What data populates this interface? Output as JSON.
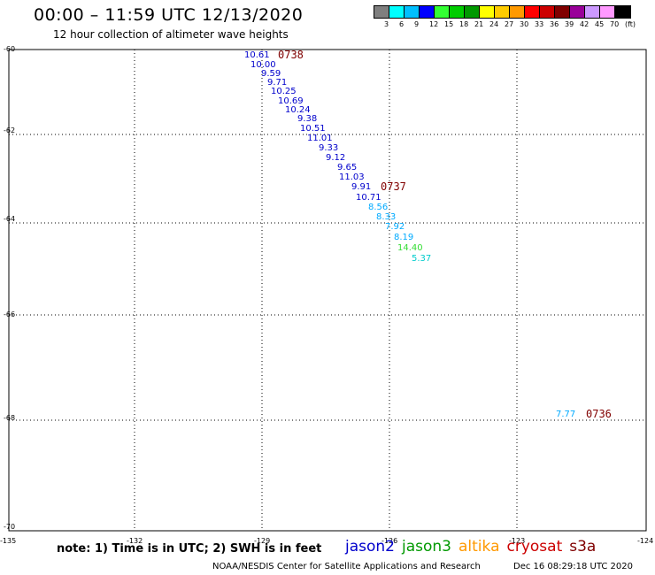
{
  "header": {
    "title": "00:00 – 11:59 UTC 12/13/2020",
    "subtitle": "12 hour collection of altimeter wave heights"
  },
  "legend": {
    "colors": [
      "#7f7f7f",
      "#00ffff",
      "#00bfff",
      "#0000ff",
      "#33ff33",
      "#00cc00",
      "#009900",
      "#ffff00",
      "#ffcc00",
      "#ff9900",
      "#ff0000",
      "#cc0000",
      "#800000",
      "#990099",
      "#cc99ff",
      "#ff99ff",
      "#000000"
    ],
    "labels": [
      "3",
      "6",
      "9",
      "12",
      "15",
      "18",
      "21",
      "24",
      "27",
      "30",
      "33",
      "36",
      "39",
      "42",
      "45",
      "70",
      "(ft)"
    ]
  },
  "map": {
    "lat_labels": [
      "-60",
      "-62",
      "-64",
      "-66",
      "-68",
      "-70"
    ],
    "lon_labels": [
      "-135",
      "-132",
      "-129",
      "-126",
      "-123",
      "-124"
    ],
    "time_labels": [
      {
        "text": "0738",
        "lon": -128.6,
        "lat": -60.2,
        "color": "#800000"
      },
      {
        "text": "0737",
        "lon": -125.8,
        "lat": -63.3,
        "color": "#800000"
      },
      {
        "text": "0736",
        "lon": -121.2,
        "lat": -67.8,
        "color": "#800000"
      }
    ],
    "points": [
      {
        "text": "10.61",
        "lon": -129.4,
        "lat": -60.2,
        "color": "#0000cc"
      },
      {
        "text": "10.00",
        "lon": -129.2,
        "lat": -60.4,
        "color": "#0000cc"
      },
      {
        "text": "9.59",
        "lon": -128.9,
        "lat": -60.6,
        "color": "#0000cc"
      },
      {
        "text": "9.71",
        "lon": -128.8,
        "lat": -60.8,
        "color": "#0000cc"
      },
      {
        "text": "10.25",
        "lon": -128.6,
        "lat": -61.0,
        "color": "#0000cc"
      },
      {
        "text": "10.69",
        "lon": -128.4,
        "lat": -61.2,
        "color": "#0000cc"
      },
      {
        "text": "10.24",
        "lon": -128.2,
        "lat": -61.4,
        "color": "#0000cc"
      },
      {
        "text": "9.38",
        "lon": -128.0,
        "lat": -61.6,
        "color": "#0000cc"
      },
      {
        "text": "10.51",
        "lon": -127.8,
        "lat": -61.8,
        "color": "#0000cc"
      },
      {
        "text": "11.01",
        "lon": -127.6,
        "lat": -62.0,
        "color": "#0000cc"
      },
      {
        "text": "9.33",
        "lon": -127.4,
        "lat": -62.2,
        "color": "#0000cc"
      },
      {
        "text": "9.12",
        "lon": -127.2,
        "lat": -62.4,
        "color": "#0000cc"
      },
      {
        "text": "9.65",
        "lon": -127.0,
        "lat": -62.6,
        "color": "#0000cc"
      },
      {
        "text": "11.03",
        "lon": -126.8,
        "lat": -62.8,
        "color": "#0000cc"
      },
      {
        "text": "9.91",
        "lon": -126.6,
        "lat": -63.0,
        "color": "#0000cc"
      },
      {
        "text": "10.71",
        "lon": -126.4,
        "lat": -63.2,
        "color": "#0000cc"
      },
      {
        "text": "8.56",
        "lon": -126.2,
        "lat": -63.4,
        "color": "#00aaff"
      },
      {
        "text": "8.33",
        "lon": -126.1,
        "lat": -63.6,
        "color": "#00aaff"
      },
      {
        "text": "7.92",
        "lon": -125.9,
        "lat": -63.8,
        "color": "#00aaff"
      },
      {
        "text": "8.19",
        "lon": -125.8,
        "lat": -64.0,
        "color": "#00aaff"
      },
      {
        "text": "14.40",
        "lon": -125.7,
        "lat": -64.2,
        "color": "#33dd33"
      },
      {
        "text": "5.37",
        "lon": -125.5,
        "lat": -64.4,
        "color": "#00cccc"
      },
      {
        "text": "7.77",
        "lon": -122.0,
        "lat": -67.8,
        "color": "#00aaff"
      }
    ]
  },
  "footer": {
    "note": "note: 1) Time is in UTC; 2) SWH is in feet",
    "satellites": [
      {
        "name": "jason2",
        "color": "#0000cc"
      },
      {
        "name": "jason3",
        "color": "#009900"
      },
      {
        "name": "altika",
        "color": "#ff9900"
      },
      {
        "name": "cryosat",
        "color": "#cc0000"
      },
      {
        "name": "s3a",
        "color": "#800000"
      }
    ],
    "credit": "NOAA/NESDIS Center for Satellite Applications and Research",
    "timestamp": "Dec 16 08:29:18 UTC 2020"
  }
}
